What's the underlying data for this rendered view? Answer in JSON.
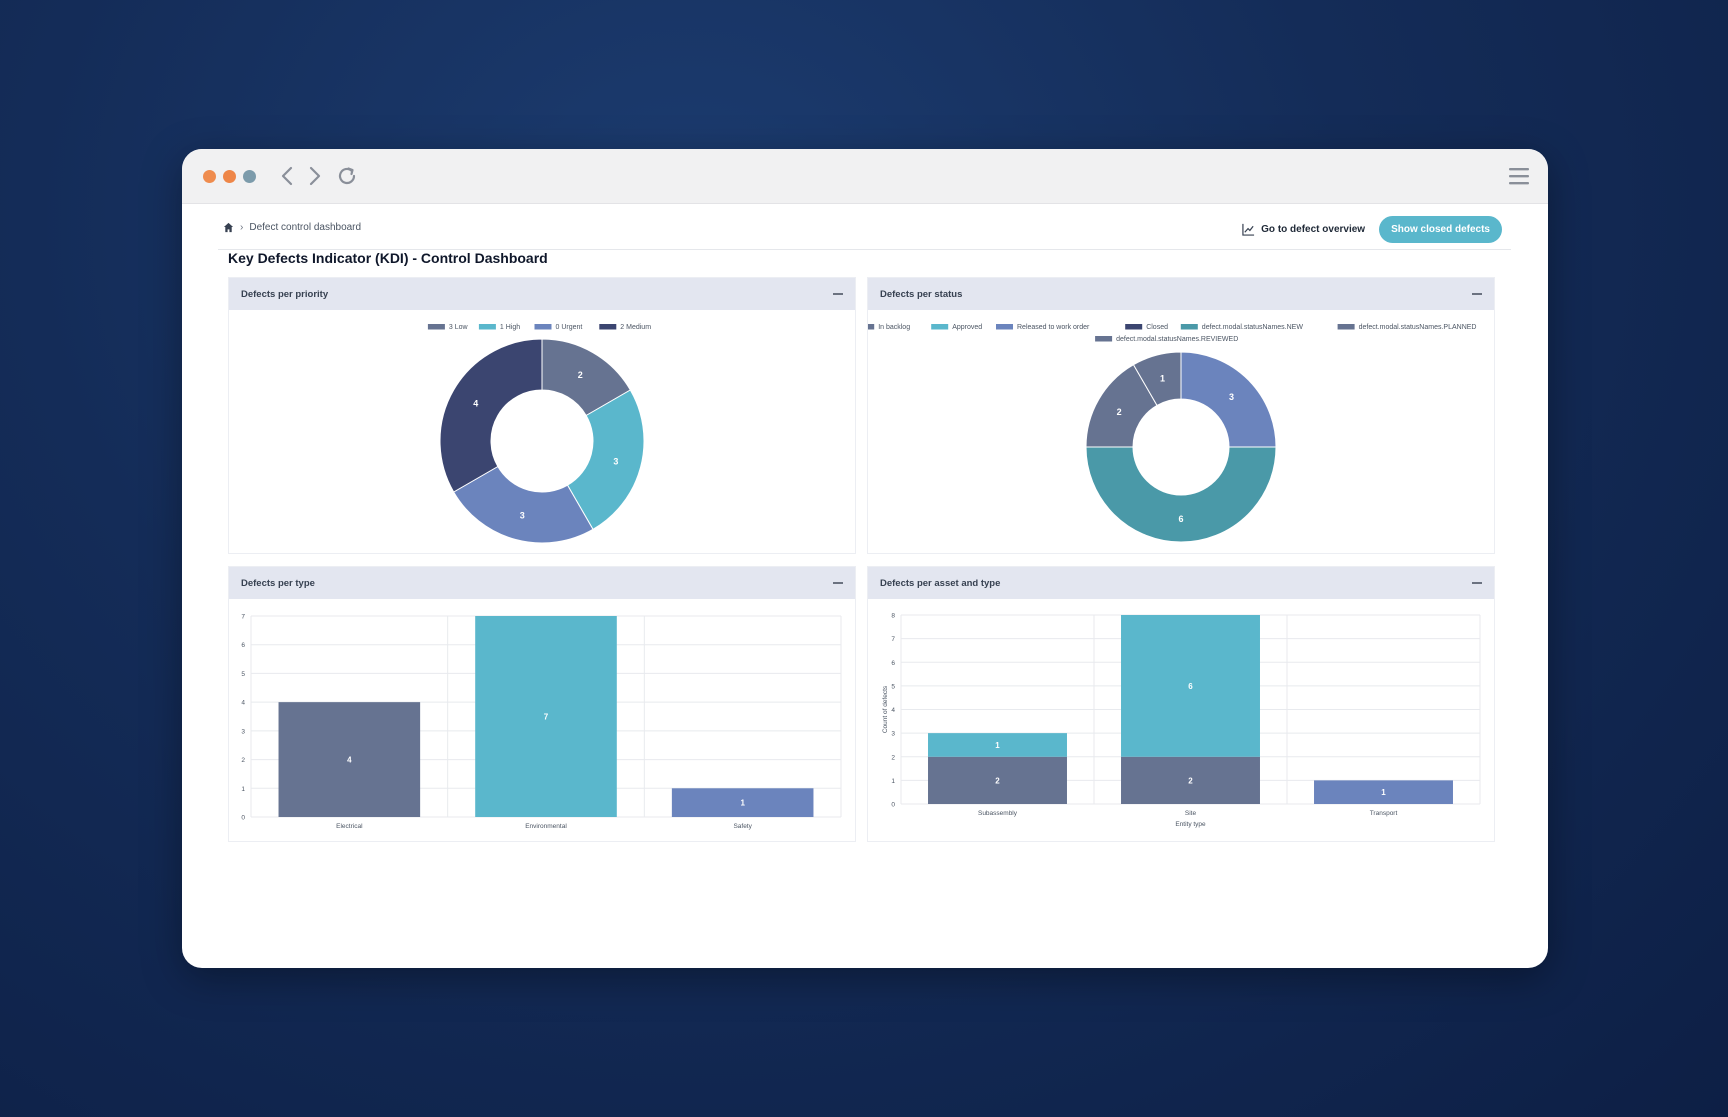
{
  "breadcrumb": {
    "current": "Defect control dashboard"
  },
  "actions": {
    "overview_label": "Go to defect overview",
    "closed_label": "Show closed defects"
  },
  "page": {
    "title": "Key Defects Indicator (KDI) - Control Dashboard"
  },
  "colors": {
    "slate": "#667391",
    "teal": "#5ab7cc",
    "periwinkle": "#6b84bd",
    "navy": "#3b4570",
    "sea": "#4a99a8",
    "accent": "#5ab7cc"
  },
  "panels": {
    "priority": {
      "title": "Defects per priority"
    },
    "status": {
      "title": "Defects per status"
    },
    "type": {
      "title": "Defects per type"
    },
    "asset": {
      "title": "Defects per asset and type"
    }
  },
  "chart_data": [
    {
      "id": "priority",
      "type": "pie",
      "legend": [
        {
          "label": "3 Low",
          "color": "#667391"
        },
        {
          "label": "1 High",
          "color": "#5ab7cc"
        },
        {
          "label": "0 Urgent",
          "color": "#6b84bd"
        },
        {
          "label": "2 Medium",
          "color": "#3b4570"
        }
      ],
      "slices": [
        {
          "value": 2,
          "color": "#667391"
        },
        {
          "value": 3,
          "color": "#5ab7cc"
        },
        {
          "value": 3,
          "color": "#6b84bd"
        },
        {
          "value": 4,
          "color": "#3b4570"
        }
      ]
    },
    {
      "id": "status",
      "type": "pie",
      "legend": [
        {
          "label": "In backlog",
          "color": "#667391"
        },
        {
          "label": "Approved",
          "color": "#5ab7cc"
        },
        {
          "label": "Released to work order",
          "color": "#6b84bd"
        },
        {
          "label": "Closed",
          "color": "#3b4570"
        },
        {
          "label": "defect.modal.statusNames.NEW",
          "color": "#4a99a8"
        },
        {
          "label": "defect.modal.statusNames.PLANNED",
          "color": "#667391"
        },
        {
          "label": "defect.modal.statusNames.REVIEWED",
          "color": "#667391"
        }
      ],
      "slices": [
        {
          "value": 3,
          "color": "#6b84bd"
        },
        {
          "value": 6,
          "color": "#4a99a8"
        },
        {
          "value": 2,
          "color": "#667391"
        },
        {
          "value": 1,
          "color": "#667391"
        }
      ]
    },
    {
      "id": "type",
      "type": "bar",
      "categories": [
        "Electrical",
        "Environmental",
        "Safety"
      ],
      "values": [
        4,
        7,
        1
      ],
      "colors": [
        "#667391",
        "#5ab7cc",
        "#6b84bd"
      ],
      "ylim": [
        0,
        7
      ],
      "yticks": [
        "0",
        "1",
        "2",
        "3",
        "4",
        "5",
        "6",
        "7"
      ]
    },
    {
      "id": "asset",
      "type": "bar",
      "stacked": true,
      "categories": [
        "Subassembly",
        "Site",
        "Transport"
      ],
      "series": [
        {
          "values": [
            2,
            2,
            0
          ],
          "color": "#667391"
        },
        {
          "values": [
            1,
            6,
            0
          ],
          "color": "#5ab7cc"
        },
        {
          "values": [
            0,
            0,
            1
          ],
          "color": "#6b84bd"
        }
      ],
      "ylim": [
        0,
        8
      ],
      "yticks": [
        "0",
        "1",
        "2",
        "3",
        "4",
        "5",
        "6",
        "7",
        "8"
      ],
      "xlabel": "Entity type",
      "ylabel": "Count of defects"
    }
  ]
}
